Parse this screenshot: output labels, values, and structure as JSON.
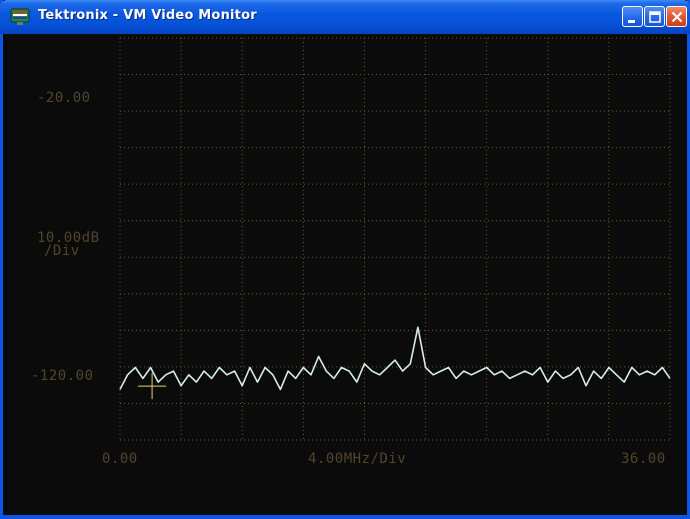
{
  "window": {
    "title": "Tektronix - VM Video Monitor",
    "icon": "monitor-icon"
  },
  "controls": {
    "minimize_icon": "minimize-icon",
    "maximize_icon": "maximize-icon",
    "close_icon": "close-icon"
  },
  "display": {
    "y_top_label": "-20.00",
    "y_scale_label_line1": "10.00dB",
    "y_scale_label_line2": "/Div",
    "y_bottom_label": "-120.00",
    "x_left_label": "0.00",
    "x_scale_label": "4.00MHz/Div",
    "x_right_label": "36.00"
  },
  "colors": {
    "grid": "#6f5a1d",
    "label": "#52452a",
    "trace": "#d8ecec",
    "cursor": "#e8d27a",
    "titlebar": "#0a58e0"
  },
  "chart_data": {
    "type": "line",
    "xlabel": "4.00MHz/Div",
    "ylabel": "10.00dB /Div",
    "xlim": [
      0,
      36
    ],
    "ylim": [
      -130,
      -20
    ],
    "x_ticks": [
      "0.00",
      "36.00"
    ],
    "y_ticks": [
      "-20.00",
      "-120.00"
    ],
    "grid": true,
    "series": [
      {
        "x": [
          0,
          0.5,
          1,
          1.5,
          2,
          2.5,
          3,
          3.5,
          4,
          4.5,
          5,
          5.5,
          6,
          6.5,
          7,
          7.5,
          8,
          8.5,
          9,
          9.5,
          10,
          10.5,
          11,
          11.5,
          12,
          12.5,
          13,
          13.5,
          14,
          14.5,
          15,
          15.5,
          16,
          16.5,
          17,
          17.5,
          18,
          18.5,
          19,
          19.5,
          20,
          20.5,
          21,
          21.5,
          22,
          22.5,
          23,
          23.5,
          24,
          24.5,
          25,
          25.5,
          26,
          26.5,
          27,
          27.5,
          28,
          28.5,
          29,
          29.5,
          30,
          30.5,
          31,
          31.5,
          32,
          32.5,
          33,
          33.5,
          34,
          34.5,
          35,
          35.5,
          36
        ],
        "values": [
          -126,
          -122,
          -120,
          -123,
          -120,
          -124,
          -122,
          -121,
          -125,
          -122,
          -124,
          -121,
          -123,
          -120,
          -122,
          -121,
          -125,
          -120,
          -124,
          -120,
          -122,
          -126,
          -121,
          -123,
          -120,
          -122,
          -117,
          -121,
          -123,
          -120,
          -121,
          -124,
          -119,
          -121,
          -122,
          -120,
          -118,
          -121,
          -119,
          -109,
          -120,
          -122,
          -121,
          -120,
          -123,
          -121,
          -122,
          -121,
          -120,
          -122,
          -121,
          -123,
          -122,
          -121,
          -122,
          -120,
          -124,
          -121,
          -123,
          -122,
          -120,
          -125,
          -121,
          -123,
          -120,
          -122,
          -124,
          -120,
          -122,
          -121,
          -122,
          -120,
          -123
        ]
      }
    ]
  }
}
